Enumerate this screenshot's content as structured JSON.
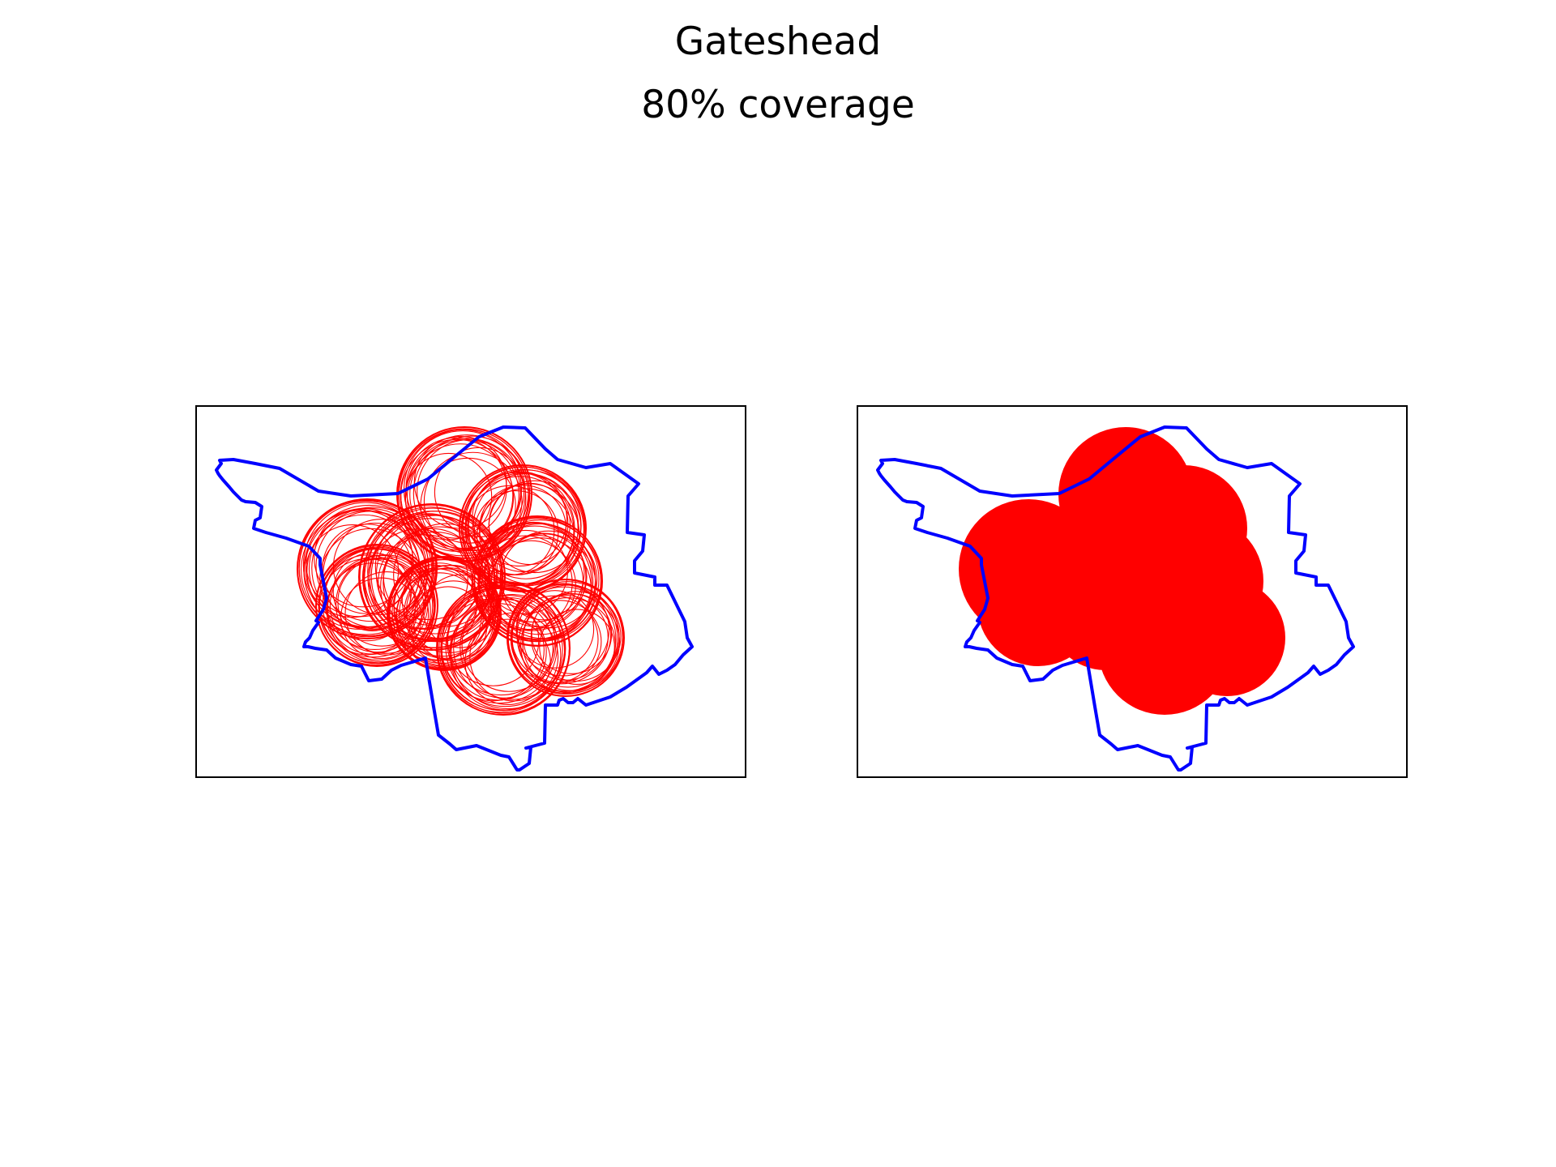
{
  "title": "Gateshead",
  "subtitle": "80% coverage",
  "colors": {
    "boundary": "#0000ff",
    "coverage": "#ff0000",
    "frame": "#000000",
    "background": "#ffffff"
  },
  "panels": [
    {
      "name": "left",
      "coverage_style": "outline-rings"
    },
    {
      "name": "right",
      "coverage_style": "solid-fill"
    }
  ]
}
